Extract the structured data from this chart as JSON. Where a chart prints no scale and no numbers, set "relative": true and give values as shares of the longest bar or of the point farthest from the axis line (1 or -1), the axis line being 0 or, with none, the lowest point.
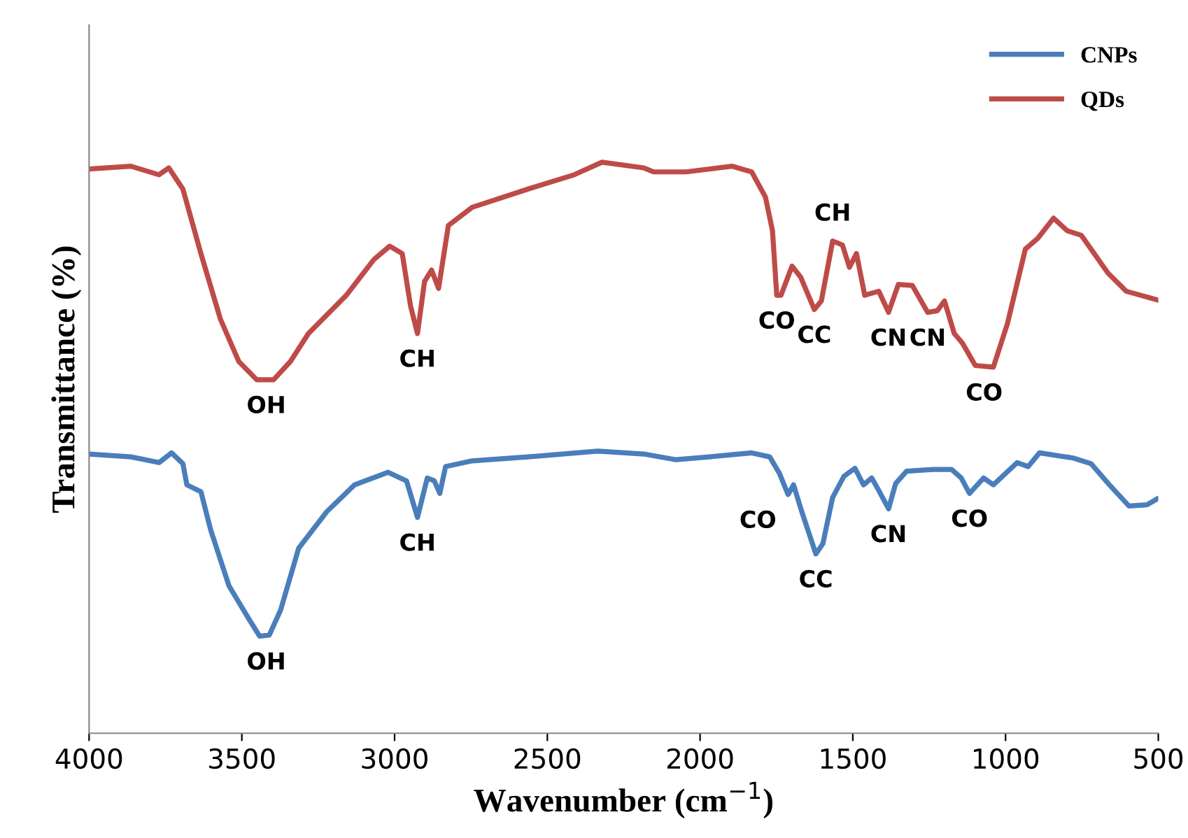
{
  "chart_data": {
    "type": "line",
    "relative": true,
    "xlabel": "Wavenumber (cm$^{−1}$)",
    "ylabel": "Transmittance (%)",
    "xlim": [
      4000,
      500
    ],
    "xticks": [
      4000,
      3500,
      3000,
      2500,
      2000,
      1500,
      1000,
      500
    ],
    "legend": "top right",
    "grid": false,
    "marker": "none",
    "line_style": "solid",
    "tick_labels": "x",
    "series": [
      {
        "name": "CNPs",
        "color": "#4a7ebb",
        "x": [
          4000,
          3863,
          3771,
          3730,
          3693,
          3680,
          3634,
          3602,
          3542,
          3478,
          3442,
          3410,
          3373,
          3314,
          3222,
          3131,
          3021,
          2961,
          2925,
          2893,
          2870,
          2852,
          2833,
          2746,
          2563,
          2335,
          2184,
          2079,
          1969,
          1831,
          1772,
          1740,
          1712,
          1694,
          1667,
          1621,
          1598,
          1566,
          1529,
          1493,
          1465,
          1438,
          1415,
          1383,
          1360,
          1324,
          1237,
          1177,
          1145,
          1118,
          1072,
          1040,
          962,
          926,
          889,
          779,
          720,
          660,
          596,
          537,
          505
        ],
        "values": [
          0.489,
          0.484,
          0.474,
          0.491,
          0.472,
          0.435,
          0.423,
          0.356,
          0.258,
          0.201,
          0.17,
          0.172,
          0.216,
          0.324,
          0.388,
          0.435,
          0.457,
          0.442,
          0.378,
          0.447,
          0.442,
          0.42,
          0.467,
          0.477,
          0.484,
          0.494,
          0.489,
          0.479,
          0.484,
          0.491,
          0.484,
          0.455,
          0.418,
          0.435,
          0.388,
          0.314,
          0.332,
          0.413,
          0.45,
          0.464,
          0.435,
          0.447,
          0.425,
          0.393,
          0.437,
          0.459,
          0.462,
          0.462,
          0.447,
          0.42,
          0.447,
          0.435,
          0.474,
          0.467,
          0.491,
          0.482,
          0.472,
          0.435,
          0.398,
          0.4,
          0.41
        ]
      },
      {
        "name": "QDs",
        "color": "#be4b48",
        "x": [
          4000,
          3863,
          3771,
          3739,
          3693,
          3634,
          3570,
          3510,
          3451,
          3396,
          3341,
          3282,
          3158,
          3067,
          3016,
          2975,
          2948,
          2925,
          2902,
          2879,
          2856,
          2824,
          2746,
          2563,
          2412,
          2321,
          2184,
          2152,
          2046,
          1896,
          1831,
          1786,
          1763,
          1749,
          1735,
          1699,
          1671,
          1626,
          1603,
          1566,
          1534,
          1511,
          1488,
          1461,
          1415,
          1383,
          1351,
          1305,
          1255,
          1223,
          1200,
          1168,
          1141,
          1099,
          1040,
          994,
          935,
          894,
          843,
          798,
          752,
          665,
          605,
          505
        ],
        "values": [
          0.988,
          0.993,
          0.978,
          0.99,
          0.953,
          0.84,
          0.725,
          0.651,
          0.619,
          0.619,
          0.651,
          0.7,
          0.767,
          0.83,
          0.853,
          0.84,
          0.749,
          0.7,
          0.791,
          0.811,
          0.779,
          0.889,
          0.921,
          0.953,
          0.978,
          1.0,
          0.99,
          0.983,
          0.983,
          0.993,
          0.983,
          0.939,
          0.88,
          0.767,
          0.767,
          0.818,
          0.799,
          0.742,
          0.757,
          0.862,
          0.855,
          0.816,
          0.84,
          0.767,
          0.774,
          0.737,
          0.786,
          0.784,
          0.737,
          0.74,
          0.757,
          0.7,
          0.683,
          0.644,
          0.641,
          0.717,
          0.848,
          0.867,
          0.902,
          0.88,
          0.872,
          0.806,
          0.774,
          0.759
        ]
      }
    ],
    "annotations": [
      {
        "text": "OH",
        "x": 3420,
        "y": 0.619
      },
      {
        "text": "CH",
        "x": 2925,
        "y": 0.7
      },
      {
        "text": "CO",
        "x": 1749,
        "y": 0.767
      },
      {
        "text": "CC",
        "x": 1626,
        "y": 0.742
      },
      {
        "text": "CH",
        "x": 1566,
        "y": 0.862
      },
      {
        "text": "CN",
        "x": 1383,
        "y": 0.737
      },
      {
        "text": "CN",
        "x": 1255,
        "y": 0.737
      },
      {
        "text": "CO",
        "x": 1070,
        "y": 0.641
      },
      {
        "text": "OH",
        "x": 3420,
        "y": 0.17
      },
      {
        "text": "CH",
        "x": 2925,
        "y": 0.378
      },
      {
        "text": "CO",
        "x": 1712,
        "y": 0.418
      },
      {
        "text": "CC",
        "x": 1621,
        "y": 0.314
      },
      {
        "text": "CN",
        "x": 1383,
        "y": 0.393
      },
      {
        "text": "CO",
        "x": 1118,
        "y": 0.42
      }
    ]
  }
}
